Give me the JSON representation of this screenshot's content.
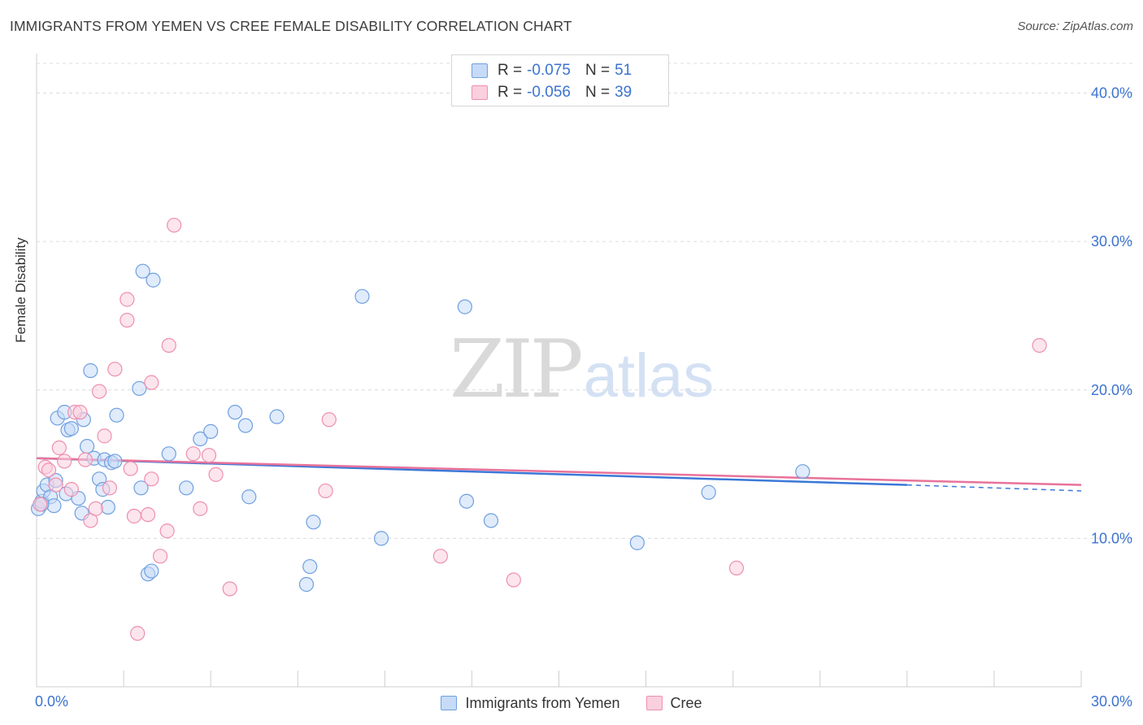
{
  "header": {
    "title": "IMMIGRANTS FROM YEMEN VS CREE FEMALE DISABILITY CORRELATION CHART",
    "source": "Source: ZipAtlas.com"
  },
  "legend": {
    "rows": [
      {
        "r_label": "R =",
        "r_value": "-0.075",
        "n_label": "N =",
        "n_value": "51",
        "color": "#6fa0e0",
        "fill": "#c6dbf7"
      },
      {
        "r_label": "R =",
        "r_value": "-0.056",
        "n_label": "N =",
        "n_value": "39",
        "color": "#ee8fb0",
        "fill": "#fad0de"
      }
    ]
  },
  "watermark": {
    "zip": "ZIP",
    "atlas": "atlas"
  },
  "colors": {
    "blue": "#3b78d8",
    "pink": "#e8729a",
    "axis_text": "#3c73d0",
    "grid": "#dddddd"
  },
  "chart_data": {
    "type": "scatter",
    "title": "IMMIGRANTS FROM YEMEN VS CREE FEMALE DISABILITY CORRELATION CHART",
    "xlabel": "",
    "ylabel": "Female Disability",
    "xlim": [
      0,
      30
    ],
    "ylim": [
      0,
      42
    ],
    "x_tick_labels": [
      "0.0%",
      "30.0%"
    ],
    "y_ticks": [
      10,
      20,
      30,
      40
    ],
    "y_tick_labels": [
      "10.0%",
      "20.0%",
      "30.0%",
      "40.0%"
    ],
    "grid": true,
    "legend_position": "top-center",
    "series": [
      {
        "name": "Immigrants from Yemen",
        "color": "#6fa0e0",
        "fill": "#c6dbf7",
        "trend": {
          "x0": 0,
          "y0": 15.4,
          "x1": 25.0,
          "y1": 13.6,
          "dash_to_x": 30,
          "dash_to_y": 13.2
        },
        "points": [
          [
            0.05,
            12.0
          ],
          [
            0.15,
            12.5
          ],
          [
            0.2,
            13.2
          ],
          [
            0.3,
            13.6
          ],
          [
            0.4,
            12.8
          ],
          [
            0.5,
            12.2
          ],
          [
            0.55,
            13.9
          ],
          [
            0.6,
            18.1
          ],
          [
            0.8,
            18.5
          ],
          [
            0.85,
            13.0
          ],
          [
            0.9,
            17.3
          ],
          [
            1.0,
            17.4
          ],
          [
            1.2,
            12.7
          ],
          [
            1.3,
            11.7
          ],
          [
            1.35,
            18.0
          ],
          [
            1.45,
            16.2
          ],
          [
            1.55,
            21.3
          ],
          [
            1.65,
            15.4
          ],
          [
            1.8,
            14.0
          ],
          [
            1.9,
            13.3
          ],
          [
            1.95,
            15.3
          ],
          [
            2.05,
            12.1
          ],
          [
            2.15,
            15.1
          ],
          [
            2.25,
            15.2
          ],
          [
            2.3,
            18.3
          ],
          [
            2.95,
            20.1
          ],
          [
            3.0,
            13.4
          ],
          [
            3.05,
            28.0
          ],
          [
            3.2,
            7.6
          ],
          [
            3.3,
            7.8
          ],
          [
            3.35,
            27.4
          ],
          [
            3.8,
            15.7
          ],
          [
            4.3,
            13.4
          ],
          [
            4.7,
            16.7
          ],
          [
            5.0,
            17.2
          ],
          [
            5.7,
            18.5
          ],
          [
            6.0,
            17.6
          ],
          [
            6.1,
            12.8
          ],
          [
            6.9,
            18.2
          ],
          [
            7.75,
            6.9
          ],
          [
            7.85,
            8.1
          ],
          [
            7.95,
            11.1
          ],
          [
            9.35,
            26.3
          ],
          [
            9.9,
            10.0
          ],
          [
            12.3,
            25.6
          ],
          [
            12.35,
            12.5
          ],
          [
            13.05,
            11.2
          ],
          [
            17.25,
            9.7
          ],
          [
            19.3,
            13.1
          ],
          [
            22.0,
            14.5
          ],
          [
            0.15,
            12.3
          ]
        ]
      },
      {
        "name": "Cree",
        "color": "#ee8fb0",
        "fill": "#fad0de",
        "trend": {
          "x0": 0,
          "y0": 15.4,
          "x1": 30,
          "y1": 13.6
        },
        "points": [
          [
            0.1,
            12.3
          ],
          [
            0.25,
            14.8
          ],
          [
            0.35,
            14.6
          ],
          [
            0.55,
            13.6
          ],
          [
            0.65,
            16.1
          ],
          [
            0.8,
            15.2
          ],
          [
            1.0,
            13.3
          ],
          [
            1.1,
            18.5
          ],
          [
            1.25,
            18.5
          ],
          [
            1.4,
            15.3
          ],
          [
            1.55,
            11.2
          ],
          [
            1.7,
            12.0
          ],
          [
            1.8,
            19.9
          ],
          [
            1.95,
            16.9
          ],
          [
            2.1,
            13.4
          ],
          [
            2.25,
            21.4
          ],
          [
            2.6,
            24.7
          ],
          [
            2.6,
            26.1
          ],
          [
            2.7,
            14.7
          ],
          [
            2.8,
            11.5
          ],
          [
            2.9,
            3.6
          ],
          [
            3.2,
            11.6
          ],
          [
            3.3,
            14.0
          ],
          [
            3.3,
            20.5
          ],
          [
            3.55,
            8.8
          ],
          [
            3.75,
            10.5
          ],
          [
            3.8,
            23.0
          ],
          [
            3.95,
            31.1
          ],
          [
            4.5,
            15.7
          ],
          [
            4.7,
            12.0
          ],
          [
            4.95,
            15.6
          ],
          [
            5.15,
            14.3
          ],
          [
            5.55,
            6.6
          ],
          [
            8.3,
            13.2
          ],
          [
            8.4,
            18.0
          ],
          [
            11.6,
            8.8
          ],
          [
            13.7,
            7.2
          ],
          [
            20.1,
            8.0
          ],
          [
            28.8,
            23.0
          ]
        ]
      }
    ]
  },
  "bottom_legend": [
    {
      "label": "Immigrants from Yemen",
      "color": "#6fa0e0",
      "fill": "#c6dbf7"
    },
    {
      "label": "Cree",
      "color": "#ee8fb0",
      "fill": "#fad0de"
    }
  ]
}
